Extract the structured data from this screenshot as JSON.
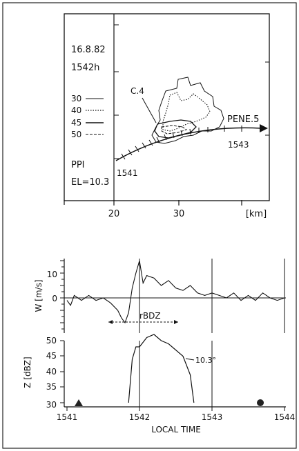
{
  "ppi": {
    "date": "16.8.82",
    "time": "1542h",
    "legend": [
      {
        "label": "30",
        "style": "solid"
      },
      {
        "label": "40",
        "style": "dotted"
      },
      {
        "label": "45",
        "style": "solid"
      },
      {
        "label": "50",
        "style": "dashed"
      }
    ],
    "scan_type": "PPI",
    "elevation": "EL=10.3",
    "cell_label": "C.4",
    "track_label": "PENE.5",
    "track_start_time": "1541",
    "track_mid_time": "1543",
    "x_ticks": [
      "20",
      "30"
    ],
    "x_unit": "[km]"
  },
  "chart_data": [
    {
      "type": "line",
      "ylabel": "W [m/s]",
      "ylim": [
        -12,
        16
      ],
      "yticks": [
        "10",
        "0"
      ],
      "annotation": "rBDZ",
      "x": [
        1541.0,
        1541.05,
        1541.1,
        1541.2,
        1541.3,
        1541.4,
        1541.5,
        1541.6,
        1541.7,
        1541.75,
        1541.8,
        1541.85,
        1541.9,
        1541.95,
        1542.0,
        1542.05,
        1542.1,
        1542.2,
        1542.3,
        1542.4,
        1542.5,
        1542.6,
        1542.7,
        1542.8,
        1542.9,
        1543.0,
        1543.1,
        1543.2,
        1543.3,
        1543.4,
        1543.5,
        1543.6,
        1543.7,
        1543.8,
        1543.9,
        1544.0
      ],
      "values": [
        -1,
        -3,
        1,
        -1,
        1,
        -1,
        0,
        -2,
        -5,
        -8,
        -10,
        -6,
        4,
        10,
        15,
        6,
        9,
        8,
        5,
        7,
        4,
        3,
        5,
        2,
        1,
        2,
        1,
        0,
        2,
        -1,
        1,
        -1,
        2,
        0,
        -1,
        0
      ]
    },
    {
      "type": "line",
      "ylabel": "Z [dBZ]",
      "xlabel": "LOCAL TIME",
      "ylim": [
        30,
        50
      ],
      "yticks": [
        "50",
        "45",
        "40",
        "35",
        "30"
      ],
      "xticks": [
        "1541",
        "1542",
        "1543",
        "1544"
      ],
      "annotation": "10.3°",
      "x": [
        1541.85,
        1541.9,
        1541.95,
        1542.0,
        1542.1,
        1542.2,
        1542.3,
        1542.4,
        1542.5,
        1542.6,
        1542.7,
        1542.75
      ],
      "values": [
        30,
        44,
        48,
        48,
        51,
        52,
        50,
        49,
        47,
        45,
        39,
        30
      ]
    }
  ]
}
